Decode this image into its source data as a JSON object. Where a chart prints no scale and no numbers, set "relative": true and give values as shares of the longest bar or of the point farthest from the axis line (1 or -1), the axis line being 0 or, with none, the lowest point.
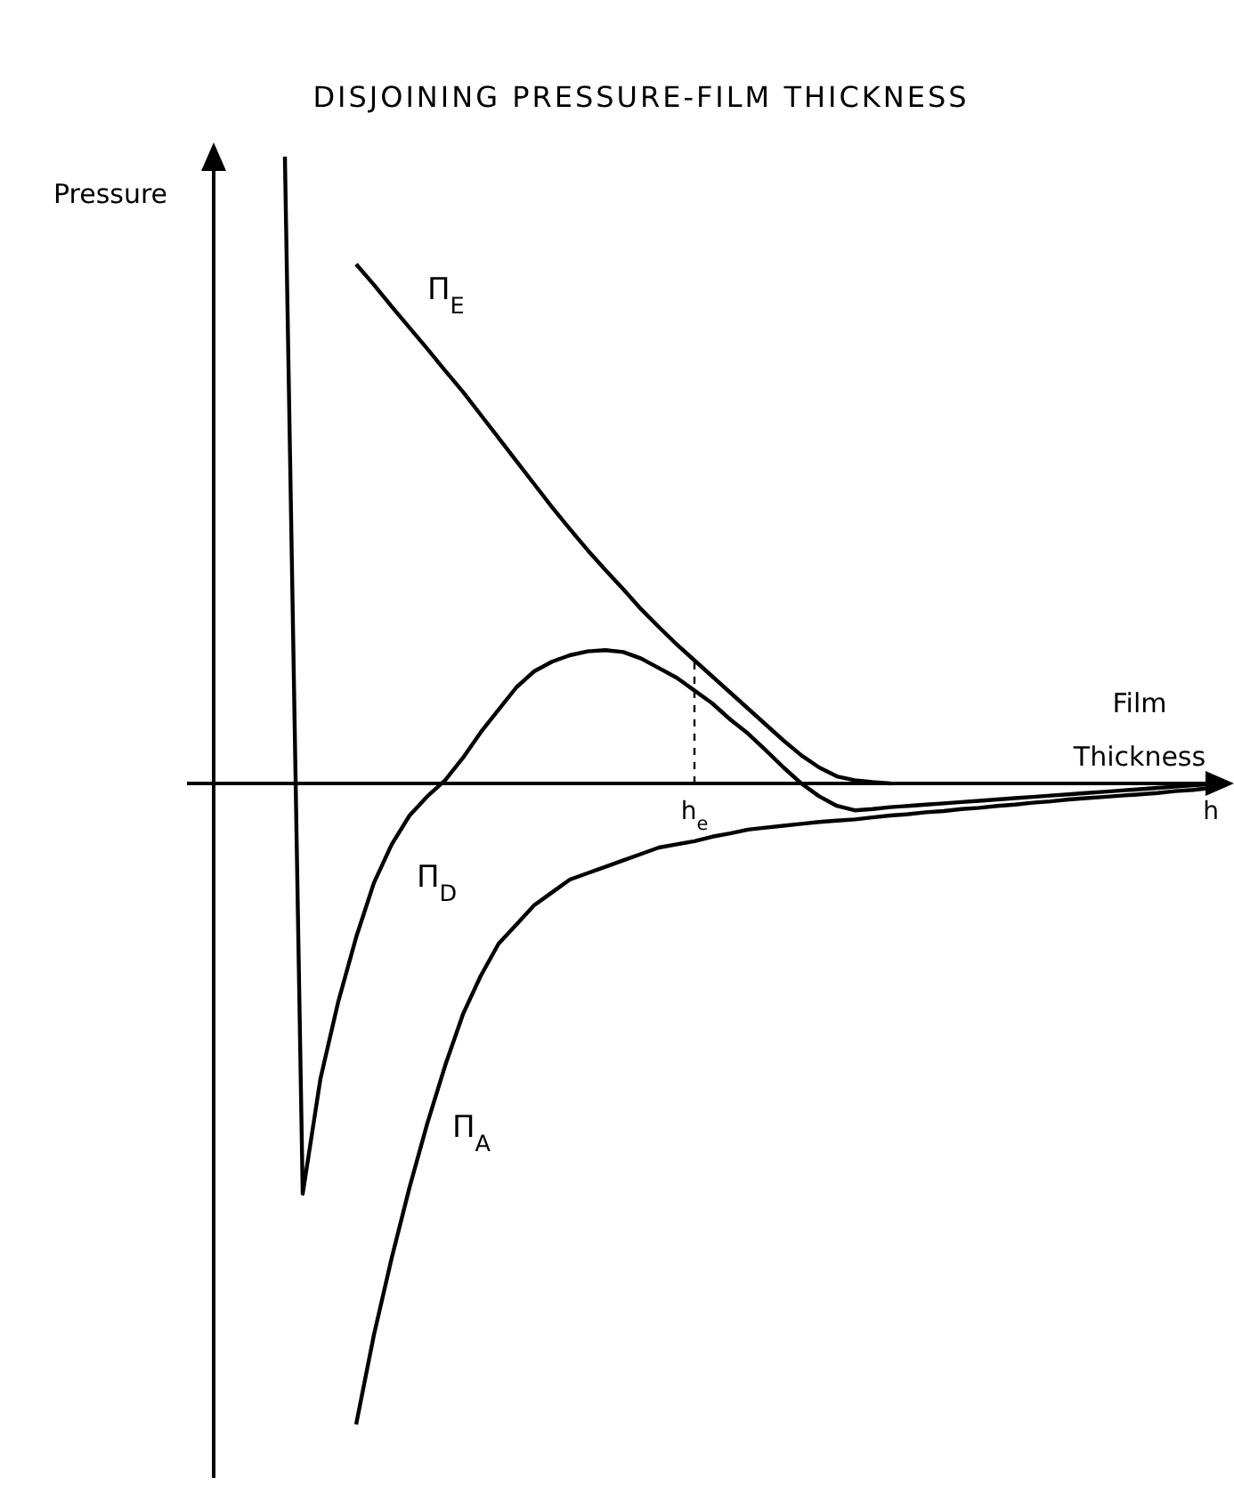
{
  "chart_data": {
    "type": "line",
    "title": "DISJOINING PRESSURE-FILM THICKNESS",
    "xlabel": "Film Thickness",
    "ylabel": "Pressure",
    "relative": true,
    "categories": [
      null,
      null,
      null,
      null,
      null,
      null,
      null,
      null,
      null,
      null,
      null,
      null,
      null,
      null,
      null,
      null,
      null,
      null,
      null,
      null,
      null,
      null,
      null,
      "h$_{e}$",
      null,
      null,
      null,
      null,
      null,
      null,
      null,
      null,
      null,
      null,
      null,
      null,
      null,
      null,
      null,
      null,
      null,
      null,
      null,
      null,
      null,
      null,
      null,
      null,
      null,
      null,
      null,
      null,
      "h",
      null
    ],
    "series": [
      {
        "name": "Π$_{E}$",
        "color": "#000000",
        "values": [
          null,
          null,
          null,
          null,
          0.81,
          0.778,
          0.744,
          0.711,
          0.678,
          0.644,
          0.611,
          0.575,
          0.539,
          0.503,
          0.467,
          0.431,
          0.397,
          0.364,
          0.333,
          0.303,
          0.272,
          0.244,
          0.217,
          0.192,
          0.167,
          0.142,
          0.117,
          0.092,
          0.067,
          0.044,
          0.025,
          0.011,
          0.005,
          0.002,
          0,
          null,
          null,
          null,
          null,
          null,
          null,
          null,
          null,
          null,
          null,
          null,
          null,
          null,
          null,
          null,
          null,
          null,
          null,
          null
        ]
      },
      {
        "name": "Π$_{D}$",
        "color": "#000000",
        "values": [
          0.978,
          -0.64,
          -0.46,
          -0.34,
          -0.24,
          -0.155,
          -0.095,
          -0.05,
          -0.02,
          0.005,
          0.04,
          0.08,
          0.115,
          0.15,
          0.175,
          0.19,
          0.2,
          0.206,
          0.208,
          0.205,
          0.195,
          0.18,
          0.165,
          0.145,
          0.125,
          0.1,
          0.078,
          0.052,
          0.025,
          0,
          -0.02,
          -0.035,
          -0.042,
          -0.04,
          -0.037,
          -0.035,
          -0.033,
          -0.031,
          -0.029,
          -0.027,
          -0.025,
          -0.023,
          -0.021,
          -0.019,
          -0.017,
          -0.015,
          -0.013,
          -0.011,
          -0.009,
          -0.007,
          -0.005,
          -0.003,
          -0.001,
          null
        ]
      },
      {
        "name": "Π$_{A}$",
        "color": "#000000",
        "values": [
          null,
          null,
          null,
          null,
          -1,
          -0.86,
          -0.74,
          -0.63,
          -0.53,
          -0.44,
          -0.36,
          -0.3,
          -0.25,
          -0.22,
          -0.19,
          -0.17,
          -0.15,
          -0.14,
          -0.13,
          -0.12,
          -0.11,
          -0.1,
          -0.095,
          -0.09,
          -0.083,
          -0.078,
          -0.072,
          -0.069,
          -0.066,
          -0.063,
          -0.06,
          -0.058,
          -0.056,
          -0.053,
          -0.05,
          -0.048,
          -0.045,
          -0.043,
          -0.04,
          -0.038,
          -0.035,
          -0.033,
          -0.03,
          -0.028,
          -0.025,
          -0.023,
          -0.021,
          -0.019,
          -0.017,
          -0.015,
          -0.012,
          -0.01,
          -0.007,
          null
        ]
      }
    ],
    "ref_lines": [
      {
        "axis": "x",
        "value": "h$_{e}$",
        "line_style": "dashed"
      }
    ]
  }
}
